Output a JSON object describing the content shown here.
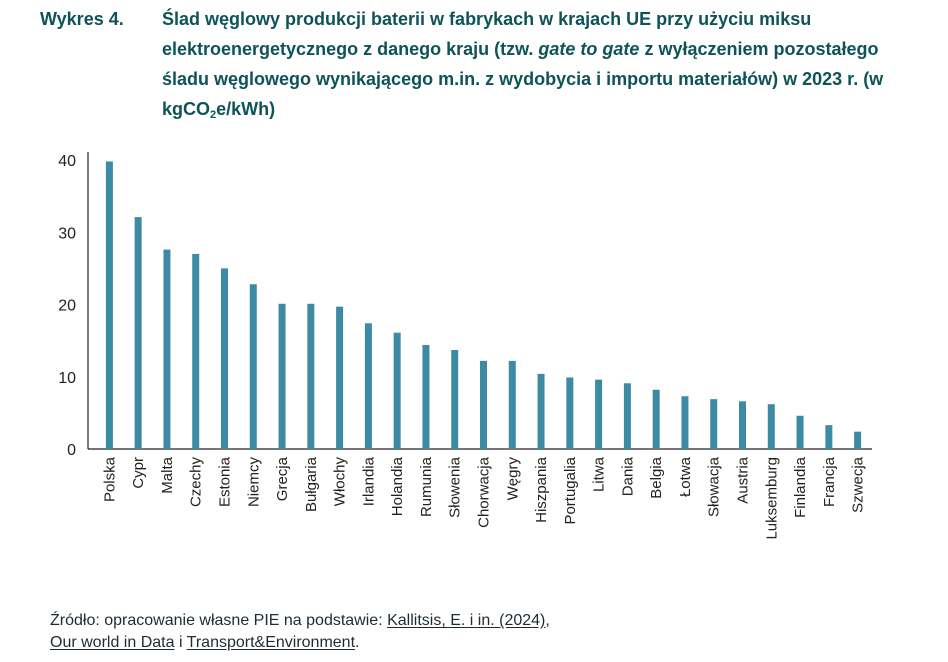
{
  "title": {
    "label": "Wykres 4.",
    "part1": "Ślad węglowy produkcji baterii w fabrykach w krajach UE przy użyciu miksu elektroenergetycznego z danego kraju (tzw. ",
    "italic": "gate to gate",
    "part2": " z wyłączeniem pozostałego śladu węglowego wynikającego m.in. z wydobycia i importu materiałów) w 2023 r. (w kgCO",
    "subscript": "2",
    "part3": "e/kWh)"
  },
  "chart_data": {
    "type": "bar",
    "title": "Ślad węglowy produkcji baterii w fabrykach w krajach UE (w kgCO2e/kWh)",
    "xlabel": "",
    "ylabel": "",
    "ylim": [
      0,
      40
    ],
    "yticks": [
      0,
      10,
      20,
      30,
      40
    ],
    "categories": [
      "Polska",
      "Cypr",
      "Malta",
      "Czechy",
      "Estonia",
      "Niemcy",
      "Grecja",
      "Bułgaria",
      "Włochy",
      "Irlandia",
      "Holandia",
      "Rumunia",
      "Słowenia",
      "Chorwacja",
      "Węgry",
      "Hiszpania",
      "Portugalia",
      "Litwa",
      "Dania",
      "Belgia",
      "Łotwa",
      "Słowacja",
      "Austria",
      "Luksemburg",
      "Finlandia",
      "Francja",
      "Szwecja"
    ],
    "values": [
      39.8,
      32.1,
      27.6,
      27.0,
      25.0,
      22.8,
      20.1,
      20.1,
      19.7,
      17.4,
      16.1,
      14.4,
      13.7,
      12.2,
      12.2,
      10.4,
      9.9,
      9.6,
      9.1,
      8.2,
      7.3,
      6.9,
      6.6,
      6.2,
      4.6,
      3.3,
      2.4
    ],
    "bar_color": "#3d8aa5",
    "axis_color": "#222222"
  },
  "source": {
    "prefix": "Źródło: opracowanie własne PIE na podstawie: ",
    "link1": "Kallitsis, E. i in. (2024)",
    "sep1": ",",
    "link2": "Our world in Data",
    "sep2": " i ",
    "link3": "Transport&Environment",
    "suffix": "."
  }
}
